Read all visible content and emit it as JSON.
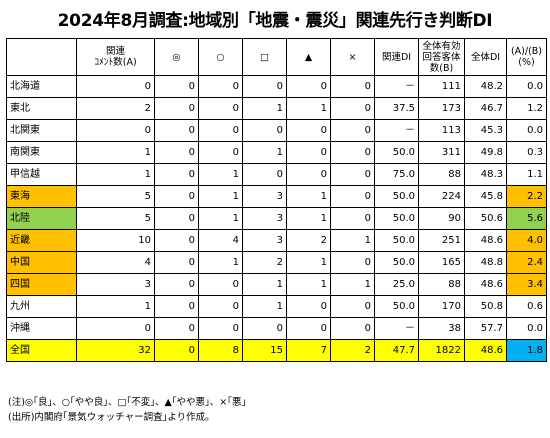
{
  "title": "2024年8月調査:地域別「地震・震災」関連先行き判断DI",
  "headers": [
    "",
    "関連\nｺﾒﾝﾄ数(A)",
    "◎",
    "○",
    "□",
    "▲",
    "×",
    "関連DI",
    "全体有効\n回答客体数(B)",
    "全体DI",
    "(A)/(B)\n(%)"
  ],
  "rows": [
    {
      "region": "北海道",
      "cells": [
        "0",
        "0",
        "0",
        "0",
        "0",
        "0",
        "－",
        "111",
        "48.2",
        "0.0"
      ],
      "hl": "",
      "hl_last": ""
    },
    {
      "region": "東北",
      "cells": [
        "2",
        "0",
        "0",
        "1",
        "1",
        "0",
        "37.5",
        "173",
        "46.7",
        "1.2"
      ],
      "hl": "",
      "hl_last": ""
    },
    {
      "region": "北関東",
      "cells": [
        "0",
        "0",
        "0",
        "0",
        "0",
        "0",
        "－",
        "113",
        "45.3",
        "0.0"
      ],
      "hl": "",
      "hl_last": ""
    },
    {
      "region": "南関東",
      "cells": [
        "1",
        "0",
        "0",
        "1",
        "0",
        "0",
        "50.0",
        "311",
        "49.8",
        "0.3"
      ],
      "hl": "",
      "hl_last": ""
    },
    {
      "region": "甲信越",
      "cells": [
        "1",
        "0",
        "1",
        "0",
        "0",
        "0",
        "75.0",
        "88",
        "48.3",
        "1.1"
      ],
      "hl": "",
      "hl_last": ""
    },
    {
      "region": "東海",
      "cells": [
        "5",
        "0",
        "1",
        "3",
        "1",
        "0",
        "50.0",
        "224",
        "45.8",
        "2.2"
      ],
      "hl": "orange",
      "hl_last": "orange"
    },
    {
      "region": "北陸",
      "cells": [
        "5",
        "0",
        "1",
        "3",
        "1",
        "0",
        "50.0",
        "90",
        "50.6",
        "5.6"
      ],
      "hl": "green",
      "hl_last": "green"
    },
    {
      "region": "近畿",
      "cells": [
        "10",
        "0",
        "4",
        "3",
        "2",
        "1",
        "50.0",
        "251",
        "48.6",
        "4.0"
      ],
      "hl": "orange",
      "hl_last": "orange"
    },
    {
      "region": "中国",
      "cells": [
        "4",
        "0",
        "1",
        "2",
        "1",
        "0",
        "50.0",
        "165",
        "48.8",
        "2.4"
      ],
      "hl": "orange",
      "hl_last": "orange"
    },
    {
      "region": "四国",
      "cells": [
        "3",
        "0",
        "0",
        "1",
        "1",
        "1",
        "25.0",
        "88",
        "48.6",
        "3.4"
      ],
      "hl": "orange",
      "hl_last": "orange"
    },
    {
      "region": "九州",
      "cells": [
        "1",
        "0",
        "0",
        "1",
        "0",
        "0",
        "50.0",
        "170",
        "50.8",
        "0.6"
      ],
      "hl": "",
      "hl_last": ""
    },
    {
      "region": "沖縄",
      "cells": [
        "0",
        "0",
        "0",
        "0",
        "0",
        "0",
        "－",
        "38",
        "57.7",
        "0.0"
      ],
      "hl": "",
      "hl_last": ""
    },
    {
      "region": "全国",
      "cells": [
        "32",
        "0",
        "8",
        "15",
        "7",
        "2",
        "47.7",
        "1822",
        "48.6",
        "1.8"
      ],
      "hl": "yellow",
      "hl_last": "blue"
    }
  ],
  "notes": [
    "(注)◎｢良｣、○｢やや良｣、□｢不変｣、▲｢やや悪｣、×｢悪｣",
    "(出所)内閣府｢景気ウォッチャー調査｣より作成。"
  ],
  "colors": {
    "orange": "#ffc000",
    "green": "#92d050",
    "yellow": "#ffff00",
    "blue": "#00b0f0"
  }
}
